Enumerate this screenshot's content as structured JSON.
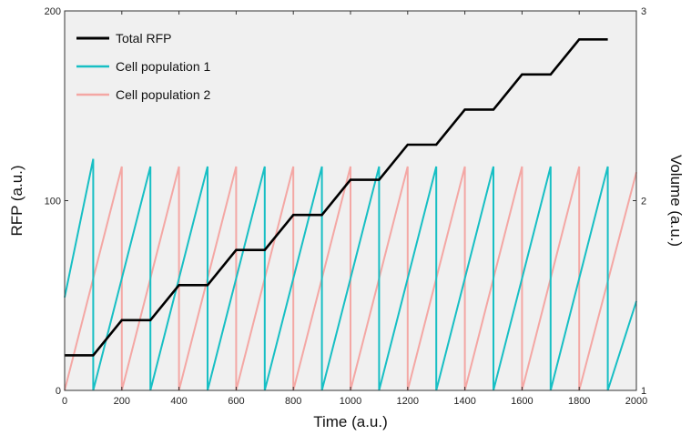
{
  "chart_data": {
    "type": "line",
    "xlabel": "Time (a.u.)",
    "ylabel": "RFP (a.u.)",
    "y2label": "Volume (a.u.)",
    "xlim": [
      0,
      2000
    ],
    "ylim": [
      0,
      200
    ],
    "y2lim": [
      1,
      3
    ],
    "xticks": [
      0,
      200,
      400,
      600,
      800,
      1000,
      1200,
      1400,
      1600,
      1800,
      2000
    ],
    "yticks": [
      0,
      100,
      200
    ],
    "y2ticks": [
      1,
      2,
      3
    ],
    "grid": false,
    "background": "#f0f0f0",
    "legend_position": "top-left",
    "series": [
      {
        "name": "Total RFP",
        "axis": "left",
        "color": "#000000",
        "x": [
          0,
          100,
          200,
          300,
          400,
          500,
          600,
          700,
          800,
          900,
          1000,
          1100,
          1200,
          1300,
          1400,
          1500,
          1600,
          1700,
          1800,
          1900
        ],
        "y": [
          18.5,
          18.5,
          37,
          37,
          55.5,
          55.5,
          74,
          74,
          92.5,
          92.5,
          111,
          111,
          129.5,
          129.5,
          148,
          148,
          166.5,
          166.5,
          185,
          185
        ]
      },
      {
        "name": "Cell population 1",
        "axis": "right",
        "color": "#17bfc4",
        "x": [
          0,
          100,
          100,
          300,
          300,
          500,
          500,
          700,
          700,
          900,
          900,
          1100,
          1100,
          1300,
          1300,
          1500,
          1500,
          1700,
          1700,
          1900,
          1900,
          2000
        ],
        "y": [
          1.49,
          2.22,
          1,
          2.18,
          1,
          2.18,
          1,
          2.18,
          1,
          2.18,
          1,
          2.18,
          1,
          2.18,
          1,
          2.18,
          1,
          2.18,
          1,
          2.18,
          1,
          1.47
        ]
      },
      {
        "name": "Cell population 2",
        "axis": "right",
        "color": "#f4a7a4",
        "x": [
          0,
          200,
          200,
          400,
          400,
          600,
          600,
          800,
          800,
          1000,
          1000,
          1200,
          1200,
          1400,
          1400,
          1600,
          1600,
          1800,
          1800,
          2000
        ],
        "y": [
          1,
          2.18,
          1,
          2.18,
          1,
          2.18,
          1,
          2.18,
          1,
          2.18,
          1,
          2.18,
          1,
          2.18,
          1,
          2.18,
          1,
          2.18,
          1,
          2.15
        ]
      }
    ]
  }
}
